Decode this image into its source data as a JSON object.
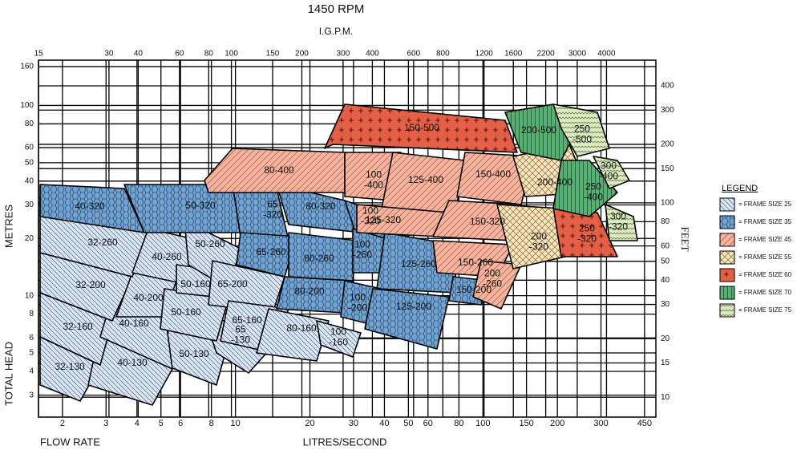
{
  "chart_data": {
    "type": "region-map",
    "title": "1450 RPM",
    "x2_label": "I.G.P.M.",
    "y_label_top": "METRES",
    "y_label_bottom": "TOTAL HEAD",
    "y2_label": "FEET",
    "x_label_left": "FLOW RATE",
    "x_label": "LITRES/SECOND",
    "xlim": [
      1.6,
      500
    ],
    "xticks": [
      2,
      3,
      4,
      5,
      6,
      8,
      10,
      20,
      30,
      40,
      50,
      60,
      80,
      100,
      150,
      200,
      300,
      450
    ],
    "x2lim": [
      15,
      6500
    ],
    "x2ticks": [
      15,
      30,
      40,
      60,
      80,
      100,
      150,
      200,
      300,
      400,
      600,
      800,
      1200,
      1600,
      2200,
      3000,
      4000
    ],
    "ylim": [
      2.3,
      173
    ],
    "yticks": [
      3,
      4,
      5,
      6,
      8,
      10,
      20,
      30,
      40,
      50,
      60,
      80,
      100,
      160
    ],
    "y2lim": [
      7.9,
      542
    ],
    "y2ticks": [
      10,
      15,
      20,
      30,
      40,
      50,
      60,
      80,
      100,
      150,
      200,
      300,
      400
    ],
    "grid": true,
    "legend_title": "LEGEND",
    "legend": [
      {
        "label": "= FRAME SIZE 25",
        "regions": [
          {
            "label": [
              "32-130"
            ]
          },
          {
            "label": [
              "40-130"
            ]
          },
          {
            "label": [
              "50-130"
            ]
          },
          {
            "label": [
              "32-160"
            ]
          },
          {
            "label": [
              "40-160"
            ]
          },
          {
            "label": [
              "65",
              "-130"
            ]
          },
          {
            "label": [
              "32-200"
            ]
          },
          {
            "label": [
              "40-200"
            ]
          },
          {
            "label": [
              "50-160"
            ]
          },
          {
            "label": [
              "32-260"
            ]
          },
          {
            "label": [
              "40-260"
            ]
          },
          {
            "label": [
              "50-160"
            ]
          },
          {
            "label": [
              "50-260"
            ]
          },
          {
            "label": [
              "65-200"
            ]
          },
          {
            "label": [
              "65-160"
            ]
          },
          {
            "label": [
              "80-160"
            ]
          },
          {
            "label": [
              "100",
              "-160"
            ]
          }
        ]
      },
      {
        "label": "= FRAME SIZE 35",
        "regions": [
          {
            "label": [
              "40-320"
            ]
          },
          {
            "label": [
              "50-320"
            ]
          },
          {
            "label": [
              "65",
              "-320"
            ]
          },
          {
            "label": [
              "80-320"
            ]
          },
          {
            "label": [
              "100",
              "-320"
            ]
          },
          {
            "label": [
              "65-260"
            ]
          },
          {
            "label": [
              "80-260"
            ]
          },
          {
            "label": [
              "100",
              "-260"
            ]
          },
          {
            "label": [
              "125-260"
            ]
          },
          {
            "label": [
              "80-200"
            ]
          },
          {
            "label": [
              "100",
              "-200"
            ]
          },
          {
            "label": [
              "125-200"
            ]
          },
          {
            "label": [
              "150-200"
            ]
          }
        ]
      },
      {
        "label": "= FRAME SIZE 45",
        "regions": [
          {
            "label": [
              "80-400"
            ]
          },
          {
            "label": [
              "100",
              "-400"
            ]
          },
          {
            "label": [
              "125-400"
            ]
          },
          {
            "label": [
              "125-320"
            ]
          },
          {
            "label": [
              "150-400"
            ]
          },
          {
            "label": [
              "150-320"
            ]
          },
          {
            "label": [
              "150-260"
            ]
          },
          {
            "label": [
              "200",
              "-260"
            ]
          }
        ]
      },
      {
        "label": "= FRAME SIZE 55",
        "regions": [
          {
            "label": [
              "200-400"
            ]
          },
          {
            "label": [
              "200",
              "-320"
            ]
          }
        ]
      },
      {
        "label": "= FRAME SIZE 60",
        "regions": [
          {
            "label": [
              "150-500"
            ]
          },
          {
            "label": [
              "250",
              "-320"
            ]
          }
        ]
      },
      {
        "label": "= FRAME SIZE 70",
        "regions": [
          {
            "label": [
              "200-500"
            ]
          },
          {
            "label": [
              "250",
              "-400"
            ]
          }
        ]
      },
      {
        "label": "= FRAME SIZE 75",
        "regions": [
          {
            "label": [
              "250",
              "-500"
            ]
          },
          {
            "label": [
              "300",
              "-400"
            ]
          },
          {
            "label": [
              "300",
              "-320"
            ]
          }
        ]
      }
    ]
  }
}
